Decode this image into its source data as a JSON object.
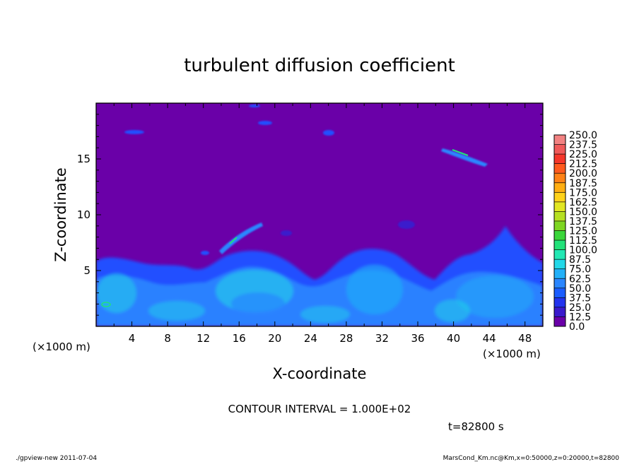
{
  "chart_data": {
    "type": "heatmap",
    "title": "turbulent diffusion coefficient",
    "xlabel": "X-coordinate",
    "ylabel": "Z-coordinate",
    "x_unit": "(×1000 m)",
    "y_unit": "(×1000 m)",
    "xlim": [
      0,
      50
    ],
    "ylim": [
      0,
      20
    ],
    "x_ticks": [
      "4",
      "8",
      "12",
      "16",
      "20",
      "24",
      "28",
      "32",
      "36",
      "40",
      "44",
      "48"
    ],
    "y_ticks": [
      "5",
      "10",
      "15"
    ],
    "colorbar": {
      "levels": [
        "0.0",
        "12.5",
        "25.0",
        "37.5",
        "50.0",
        "62.5",
        "75.0",
        "87.5",
        "100.0",
        "112.5",
        "125.0",
        "137.5",
        "150.0",
        "162.5",
        "175.0",
        "187.5",
        "200.0",
        "212.5",
        "225.0",
        "237.5",
        "250.0"
      ],
      "colors": [
        "#6a00a8",
        "#3a1acc",
        "#2233ee",
        "#1a5cff",
        "#2a86ff",
        "#22b0f8",
        "#22d8e8",
        "#22e8b4",
        "#22e27a",
        "#3ad63a",
        "#7ed622",
        "#b6e022",
        "#e2e622",
        "#ffd21a",
        "#ffae12",
        "#ff8216",
        "#ff5a1e",
        "#f5362a",
        "#f05a5a",
        "#f28282"
      ]
    },
    "grid": false,
    "contour_interval_text": "CONTOUR INTERVAL = 1.000E+02",
    "time_text": "t=82800 s"
  },
  "footer": {
    "left": "./gpview-new  2011-07-04",
    "right": "MarsCond_Km.nc@Km,x=0:50000,z=0:20000,t=82800"
  }
}
